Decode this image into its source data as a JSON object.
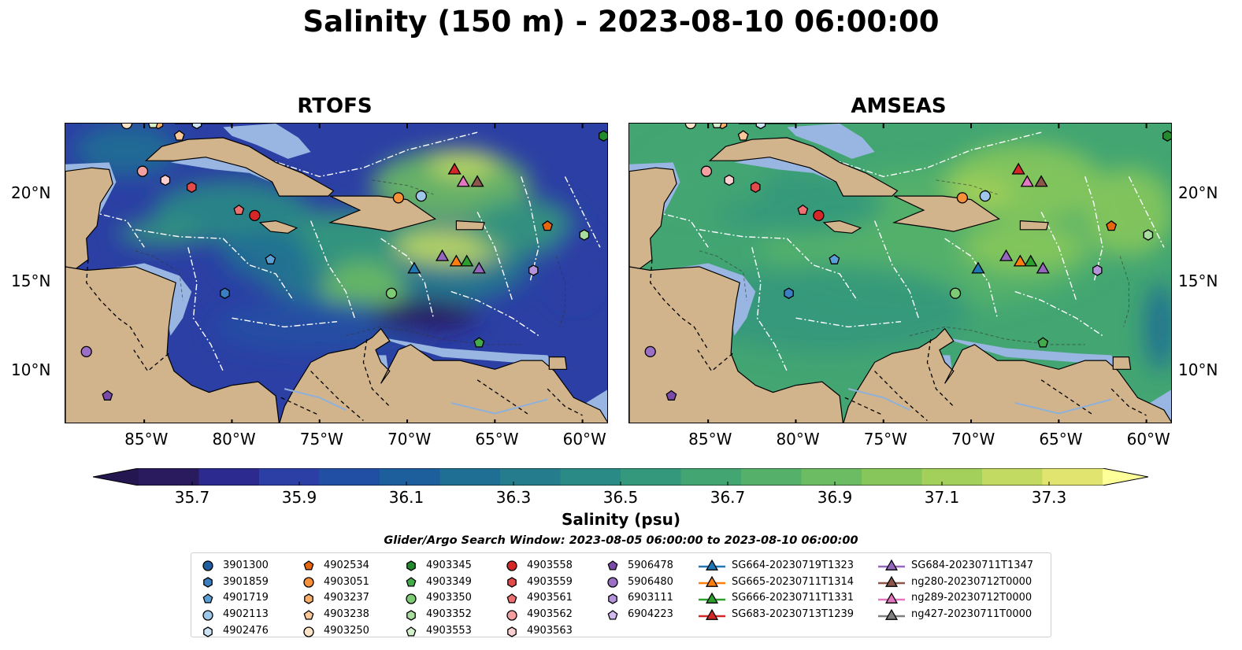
{
  "title": "Salinity (150 m) - 2023-08-10 06:00:00",
  "panels": [
    {
      "title": "RTOFS",
      "model": "rtofs"
    },
    {
      "title": "AMSEAS",
      "model": "amseas"
    }
  ],
  "axes": {
    "x_ticks": [
      "85°W",
      "80°W",
      "75°W",
      "70°W",
      "65°W",
      "60°W"
    ],
    "x_values": [
      -85,
      -80,
      -75,
      -70,
      -65,
      -60
    ],
    "y_ticks": [
      "20°N",
      "15°N",
      "10°N"
    ],
    "y_values": [
      20,
      15,
      10
    ],
    "lon_range": [
      -89.5,
      -58.5
    ],
    "lat_range": [
      7,
      24
    ]
  },
  "colorbar": {
    "label": "Salinity (psu)",
    "ticks": [
      "35.7",
      "35.9",
      "36.1",
      "36.3",
      "36.5",
      "36.7",
      "36.9",
      "37.1",
      "37.3"
    ],
    "tick_values": [
      35.7,
      35.9,
      36.1,
      36.3,
      36.5,
      36.7,
      36.9,
      37.1,
      37.3
    ],
    "vmin": 35.6,
    "vmax": 37.4,
    "colors": [
      "#2a1a5e",
      "#2d2a8f",
      "#2b3fa4",
      "#214fa3",
      "#1d5f9c",
      "#1f6e94",
      "#247c8d",
      "#2a8a85",
      "#34987c",
      "#42a572",
      "#55b16a",
      "#6bbc62",
      "#86c65b",
      "#a3d05a",
      "#c2da62",
      "#e1e56f"
    ]
  },
  "legend": {
    "title": "Glider/Argo Search Window: 2023-08-05 06:00:00 to 2023-08-10 06:00:00",
    "columns": [
      [
        {
          "label": "3901300",
          "marker": "circle",
          "color": "#1f5fa0"
        },
        {
          "label": "3901859",
          "marker": "hexagon",
          "color": "#3a7fc1"
        },
        {
          "label": "4901719",
          "marker": "pentagon",
          "color": "#5a9fd6"
        },
        {
          "label": "4902113",
          "marker": "circle",
          "color": "#9ec8ea"
        },
        {
          "label": "4902476",
          "marker": "hexagon",
          "color": "#cde4f5"
        }
      ],
      [
        {
          "label": "4902534",
          "marker": "pentagon",
          "color": "#e6660e"
        },
        {
          "label": "4903051",
          "marker": "circle",
          "color": "#f6913a"
        },
        {
          "label": "4903237",
          "marker": "hexagon",
          "color": "#f9ad6b"
        },
        {
          "label": "4903238",
          "marker": "pentagon",
          "color": "#fbc89a"
        },
        {
          "label": "4903250",
          "marker": "circle",
          "color": "#fde3c8"
        }
      ],
      [
        {
          "label": "4903345",
          "marker": "hexagon",
          "color": "#238b2e"
        },
        {
          "label": "4903349",
          "marker": "pentagon",
          "color": "#44ab4a"
        },
        {
          "label": "4903350",
          "marker": "circle",
          "color": "#7dcc74"
        },
        {
          "label": "4903352",
          "marker": "hexagon",
          "color": "#a8dd9e"
        },
        {
          "label": "4903553",
          "marker": "pentagon",
          "color": "#d3f0cb"
        }
      ],
      [
        {
          "label": "4903558",
          "marker": "circle",
          "color": "#d62728"
        },
        {
          "label": "4903559",
          "marker": "hexagon",
          "color": "#e34a4a"
        },
        {
          "label": "4903561",
          "marker": "pentagon",
          "color": "#ee7070"
        },
        {
          "label": "4903562",
          "marker": "circle",
          "color": "#f5a0a0"
        },
        {
          "label": "4903563",
          "marker": "hexagon",
          "color": "#fbcfcf"
        }
      ],
      [
        {
          "label": "5906478",
          "marker": "pentagon",
          "color": "#7a4aa8"
        },
        {
          "label": "5906480",
          "marker": "circle",
          "color": "#9a6fc4"
        },
        {
          "label": "6903111",
          "marker": "hexagon",
          "color": "#b594dc"
        },
        {
          "label": "6904223",
          "marker": "pentagon",
          "color": "#d2baf0"
        }
      ],
      [
        {
          "label": "SG664-20230719T1323",
          "marker": "triangle",
          "color": "#1f77b4",
          "line": true
        },
        {
          "label": "SG665-20230711T1314",
          "marker": "triangle",
          "color": "#ff7f0e",
          "line": true
        },
        {
          "label": "SG666-20230711T1331",
          "marker": "triangle",
          "color": "#2ca02c",
          "line": true
        },
        {
          "label": "SG683-20230713T1239",
          "marker": "triangle",
          "color": "#d62728",
          "line": true
        }
      ],
      [
        {
          "label": "SG684-20230711T1347",
          "marker": "triangle",
          "color": "#9467bd",
          "line": true
        },
        {
          "label": "ng280-20230712T0000",
          "marker": "triangle",
          "color": "#8c564b",
          "line": true
        },
        {
          "label": "ng289-20230712T0000",
          "marker": "triangle",
          "color": "#e377c2",
          "line": true
        },
        {
          "label": "ng427-20230711T0000",
          "marker": "triangle",
          "color": "#7f7f7f",
          "line": true
        }
      ]
    ]
  },
  "markers": [
    {
      "id": "4903562",
      "lon": -85.1,
      "lat": 21.3
    },
    {
      "id": "4903563",
      "lon": -83.8,
      "lat": 20.8
    },
    {
      "id": "4903559",
      "lon": -82.3,
      "lat": 20.4
    },
    {
      "id": "4903561",
      "lon": -79.6,
      "lat": 19.1
    },
    {
      "id": "4903558",
      "lon": -78.7,
      "lat": 18.8
    },
    {
      "id": "4901719",
      "lon": -77.8,
      "lat": 16.3
    },
    {
      "id": "3901859",
      "lon": -80.4,
      "lat": 14.4
    },
    {
      "id": "5906480",
      "lon": -88.3,
      "lat": 11.1
    },
    {
      "id": "5906478",
      "lon": -87.1,
      "lat": 8.6
    },
    {
      "id": "4903051",
      "lon": -70.5,
      "lat": 19.8
    },
    {
      "id": "4902113",
      "lon": -69.2,
      "lat": 19.9
    },
    {
      "id": "4903350",
      "lon": -70.9,
      "lat": 14.4
    },
    {
      "id": "4902534",
      "lon": -62.0,
      "lat": 18.2
    },
    {
      "id": "4903352",
      "lon": -59.9,
      "lat": 17.7
    },
    {
      "id": "6903111",
      "lon": -62.8,
      "lat": 15.7
    },
    {
      "id": "4903349",
      "lon": -65.9,
      "lat": 11.6
    },
    {
      "id": "4903345",
      "lon": -58.8,
      "lat": 23.3
    },
    {
      "id": "4903238",
      "lon": -83.0,
      "lat": 23.3
    },
    {
      "id": "4903237",
      "lon": -84.2,
      "lat": 24.0
    },
    {
      "id": "4903553",
      "lon": -84.5,
      "lat": 24.0
    },
    {
      "id": "4903250",
      "lon": -86.0,
      "lat": 24.0
    },
    {
      "id": "4902476",
      "lon": -82.0,
      "lat": 24.0
    },
    {
      "id": "SG683-20230713T1239",
      "lon": -67.3,
      "lat": 21.4
    },
    {
      "id": "ng289-20230712T0000",
      "lon": -66.8,
      "lat": 20.7
    },
    {
      "id": "ng280-20230712T0000",
      "lon": -66.0,
      "lat": 20.7
    },
    {
      "id": "SG664-20230719T1323",
      "lon": -69.6,
      "lat": 15.8
    },
    {
      "id": "SG684-20230711T1347",
      "lon": -68.0,
      "lat": 16.5
    },
    {
      "id": "SG665-20230711T1314",
      "lon": -67.2,
      "lat": 16.2
    },
    {
      "id": "SG666-20230711T1331",
      "lon": -66.6,
      "lat": 16.2
    },
    {
      "id": "SG684-20230711T1347",
      "lon": -65.9,
      "lat": 15.8
    }
  ]
}
